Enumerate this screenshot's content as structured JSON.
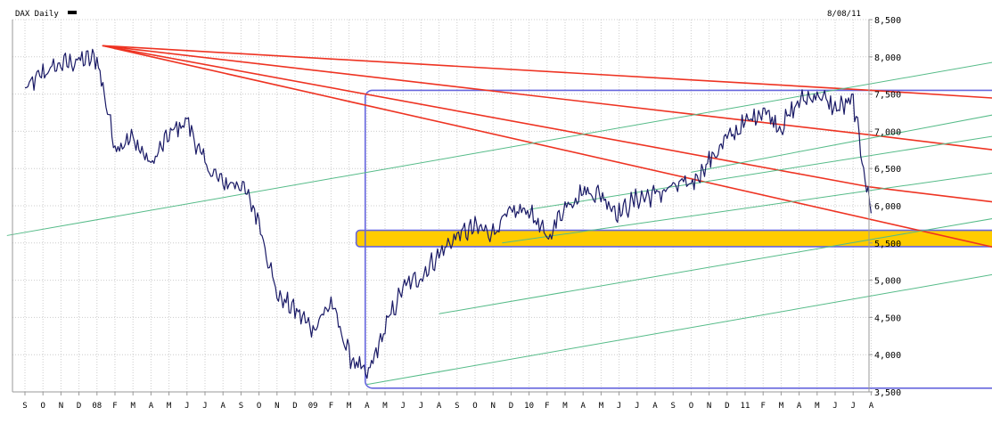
{
  "header": {
    "title": "DAX Daily",
    "date": "8/08/11"
  },
  "colors": {
    "price": "#1a1a66",
    "resistance": "#ee3322",
    "trend": "#55bb88",
    "box": "#6666dd",
    "zone": "#ffcc00",
    "grid": "#cccccc",
    "frame": "#999999"
  },
  "chart_data": {
    "type": "line",
    "title": "DAX Daily",
    "xlabel": "",
    "ylabel": "",
    "ylim": [
      3500,
      8500
    ],
    "y_axis_side": "right",
    "yticks": [
      "3,500",
      "4,000",
      "4,500",
      "5,000",
      "5,500",
      "6,000",
      "6,500",
      "7,000",
      "7,500",
      "8,000",
      "8,500"
    ],
    "ytick_values": [
      3500,
      4000,
      4500,
      5000,
      5500,
      6000,
      6500,
      7000,
      7500,
      8000,
      8500
    ],
    "xticks": [
      "S",
      "O",
      "N",
      "D",
      "08",
      "F",
      "M",
      "A",
      "M",
      "J",
      "J",
      "A",
      "S",
      "O",
      "N",
      "D",
      "09",
      "F",
      "M",
      "A",
      "M",
      "J",
      "J",
      "A",
      "S",
      "O",
      "N",
      "D",
      "10",
      "F",
      "M",
      "A",
      "M",
      "J",
      "J",
      "A",
      "S",
      "O",
      "N",
      "D",
      "11",
      "F",
      "M",
      "A",
      "M",
      "J",
      "J",
      "A"
    ],
    "grid": true,
    "series": [
      {
        "style": "price",
        "x": [
          0,
          1,
          2,
          3,
          4,
          5,
          6,
          7,
          8,
          9,
          10,
          11,
          12,
          13,
          14,
          15,
          16,
          17,
          18,
          19,
          20,
          21,
          22,
          23,
          24,
          25,
          26,
          27,
          28,
          29,
          30,
          31,
          32,
          33,
          34,
          35,
          36,
          37,
          38,
          39,
          40,
          41,
          42,
          43,
          44,
          45,
          46,
          47
        ],
        "values": [
          7550,
          7780,
          7900,
          7950,
          7980,
          6800,
          6900,
          6550,
          6950,
          7150,
          6550,
          6300,
          6300,
          5800,
          4800,
          4600,
          4350,
          4700,
          4000,
          3700,
          4350,
          4900,
          5050,
          5350,
          5600,
          5700,
          5650,
          5900,
          5950,
          5550,
          6000,
          6200,
          6150,
          5900,
          6100,
          6150,
          6250,
          6300,
          6600,
          6900,
          7100,
          7300,
          7050,
          7400,
          7500,
          7300,
          7400,
          5900
        ]
      }
    ],
    "annotations": [
      {
        "kind": "line",
        "style": "resistance",
        "x": [
          4.3,
          47
        ],
        "y": [
          8150,
          6250
        ]
      },
      {
        "kind": "line",
        "style": "resistance",
        "x": [
          4.3,
          47
        ],
        "y": [
          8150,
          6950
        ]
      },
      {
        "kind": "line",
        "style": "resistance",
        "x": [
          4.3,
          47
        ],
        "y": [
          8150,
          7550
        ]
      },
      {
        "kind": "line",
        "style": "resistance",
        "x": [
          47,
          55.5
        ],
        "y": [
          6250,
          6000
        ]
      },
      {
        "kind": "line",
        "style": "resistance",
        "x": [
          47,
          55.5
        ],
        "y": [
          6950,
          6700
        ]
      },
      {
        "kind": "line",
        "style": "resistance",
        "x": [
          47,
          55.5
        ],
        "y": [
          7550,
          7420
        ]
      },
      {
        "kind": "line",
        "style": "resistance",
        "x": [
          4.3,
          55.5
        ],
        "y": [
          8150,
          5350
        ]
      },
      {
        "kind": "line",
        "style": "trend",
        "x": [
          -1,
          55.5
        ],
        "y": [
          5600,
          8000
        ]
      },
      {
        "kind": "line",
        "style": "trend",
        "x": [
          19,
          55.5
        ],
        "y": [
          3600,
          5150
        ]
      },
      {
        "kind": "line",
        "style": "trend",
        "x": [
          23,
          55.5
        ],
        "y": [
          4550,
          5900
        ]
      },
      {
        "kind": "line",
        "style": "trend",
        "x": [
          26.5,
          55.5
        ],
        "y": [
          5500,
          6500
        ]
      },
      {
        "kind": "line",
        "style": "trend",
        "x": [
          28,
          55.5
        ],
        "y": [
          5950,
          7000
        ]
      },
      {
        "kind": "line",
        "style": "trend",
        "x": [
          37,
          55.5
        ],
        "y": [
          6450,
          7300
        ]
      },
      {
        "kind": "box",
        "style": "box",
        "x": [
          18.9,
          55.6
        ],
        "y": [
          3550,
          7550
        ]
      },
      {
        "kind": "band",
        "style": "zone",
        "x": [
          18.4,
          55.6
        ],
        "y": [
          5450,
          5670
        ]
      }
    ]
  }
}
